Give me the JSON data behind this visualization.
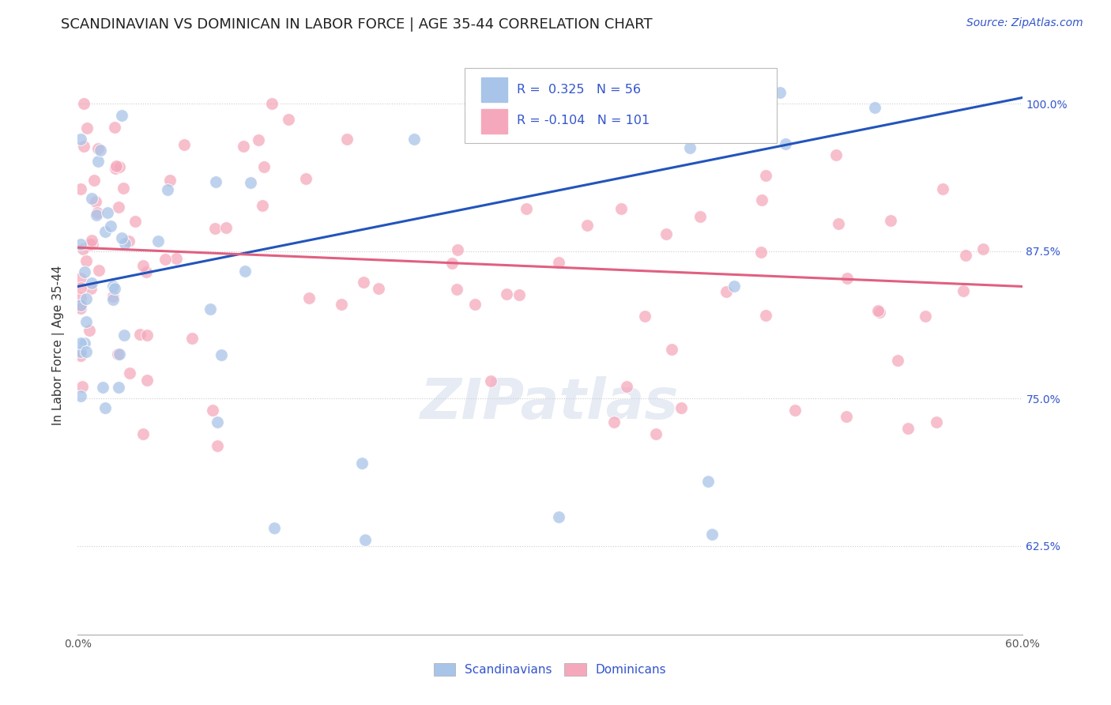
{
  "title": "SCANDINAVIAN VS DOMINICAN IN LABOR FORCE | AGE 35-44 CORRELATION CHART",
  "source": "Source: ZipAtlas.com",
  "ylabel": "In Labor Force | Age 35-44",
  "ytick_labels": [
    "62.5%",
    "75.0%",
    "87.5%",
    "100.0%"
  ],
  "ytick_values": [
    0.625,
    0.75,
    0.875,
    1.0
  ],
  "xlim": [
    0.0,
    0.6
  ],
  "ylim": [
    0.55,
    1.04
  ],
  "blue_R": 0.325,
  "blue_N": 56,
  "pink_R": -0.104,
  "pink_N": 101,
  "blue_color": "#a8c4e8",
  "pink_color": "#f5a8bc",
  "blue_line_color": "#2255bb",
  "pink_line_color": "#e06080",
  "legend_label_blue": "Scandinavians",
  "legend_label_pink": "Dominicans",
  "watermark": "ZIPatlas",
  "title_fontsize": 13,
  "axis_label_fontsize": 11,
  "tick_fontsize": 10,
  "legend_fontsize": 11,
  "source_fontsize": 10,
  "blue_trend_x": [
    0.0,
    0.6
  ],
  "blue_trend_y": [
    0.845,
    1.005
  ],
  "pink_trend_x": [
    0.0,
    0.6
  ],
  "pink_trend_y": [
    0.878,
    0.845
  ]
}
